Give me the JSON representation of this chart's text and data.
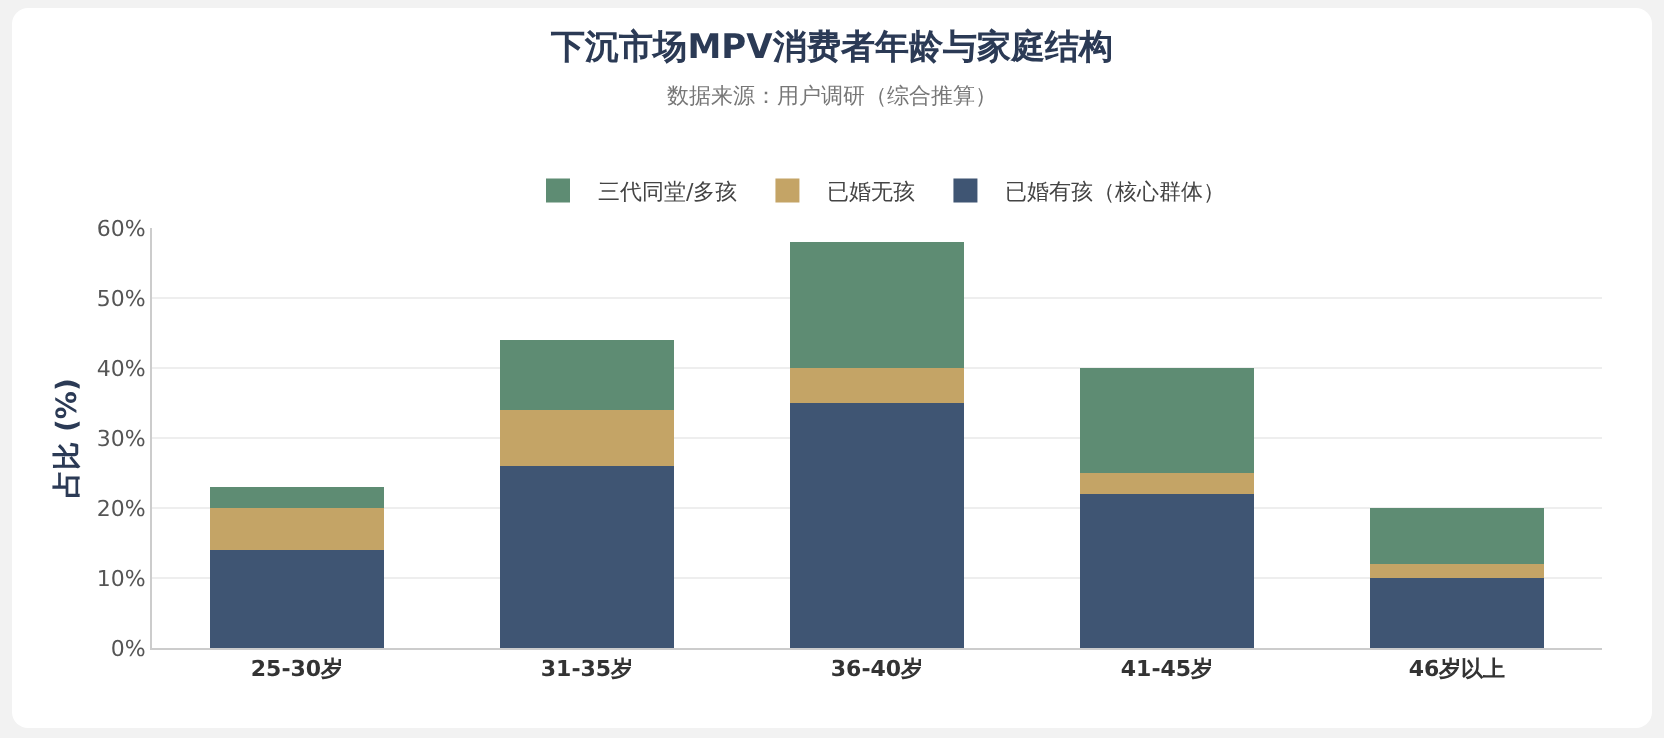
{
  "chart_data": {
    "type": "bar",
    "title": "下沉市场MPV消费者年龄与家庭结构",
    "subtitle": "数据来源：用户调研（综合推算）",
    "ylabel": "占比 (%)",
    "categories": [
      "25-30岁",
      "31-35岁",
      "36-40岁",
      "41-45岁",
      "46岁以上"
    ],
    "series": [
      {
        "name": "已婚有孩（核心群体）",
        "color": "#3f5573",
        "values": [
          14,
          26,
          35,
          22,
          10
        ]
      },
      {
        "name": "已婚无孩",
        "color": "#c4a466",
        "values": [
          6,
          8,
          5,
          3,
          2
        ]
      },
      {
        "name": "三代同堂/多孩",
        "color": "#5e8c73",
        "values": [
          3,
          10,
          18,
          15,
          8
        ]
      }
    ],
    "stacked": true,
    "ylim": [
      0,
      60
    ],
    "yticks": [
      {
        "value": 0,
        "label": "0%"
      },
      {
        "value": 10,
        "label": "10%"
      },
      {
        "value": 20,
        "label": "20%"
      },
      {
        "value": 30,
        "label": "30%"
      },
      {
        "value": 40,
        "label": "40%"
      },
      {
        "value": 50,
        "label": "50%"
      },
      {
        "value": 60,
        "label": "60%"
      }
    ],
    "grid": "y",
    "legend": "top"
  }
}
